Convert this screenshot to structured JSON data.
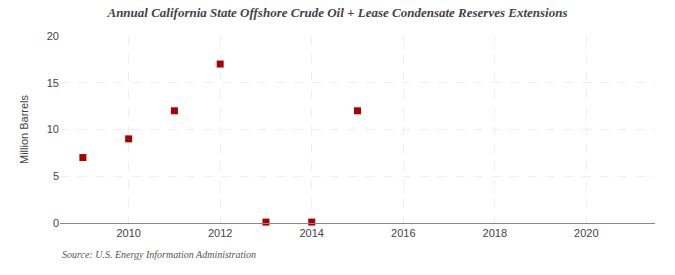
{
  "chart_data": {
    "type": "scatter",
    "title": "Annual California State Offshore Crude Oil + Lease Condensate Reserves Extensions",
    "ylabel": "Million Barrels",
    "annotations": [
      "Source: U.S. Energy Information Administration"
    ],
    "x": [
      2009,
      2010,
      2011,
      2012,
      2013,
      2014,
      2015
    ],
    "values": [
      7.0,
      9.0,
      12.0,
      17.0,
      0.1,
      0.1,
      12.0
    ],
    "color": "#aa0000",
    "marker": "square",
    "xlim": [
      2008.5,
      2021.5
    ],
    "ylim": [
      0,
      20
    ],
    "xticks": [
      2010,
      2012,
      2014,
      2016,
      2018,
      2020
    ],
    "yticks": [
      0,
      5,
      10,
      15,
      20
    ],
    "grid": true
  }
}
